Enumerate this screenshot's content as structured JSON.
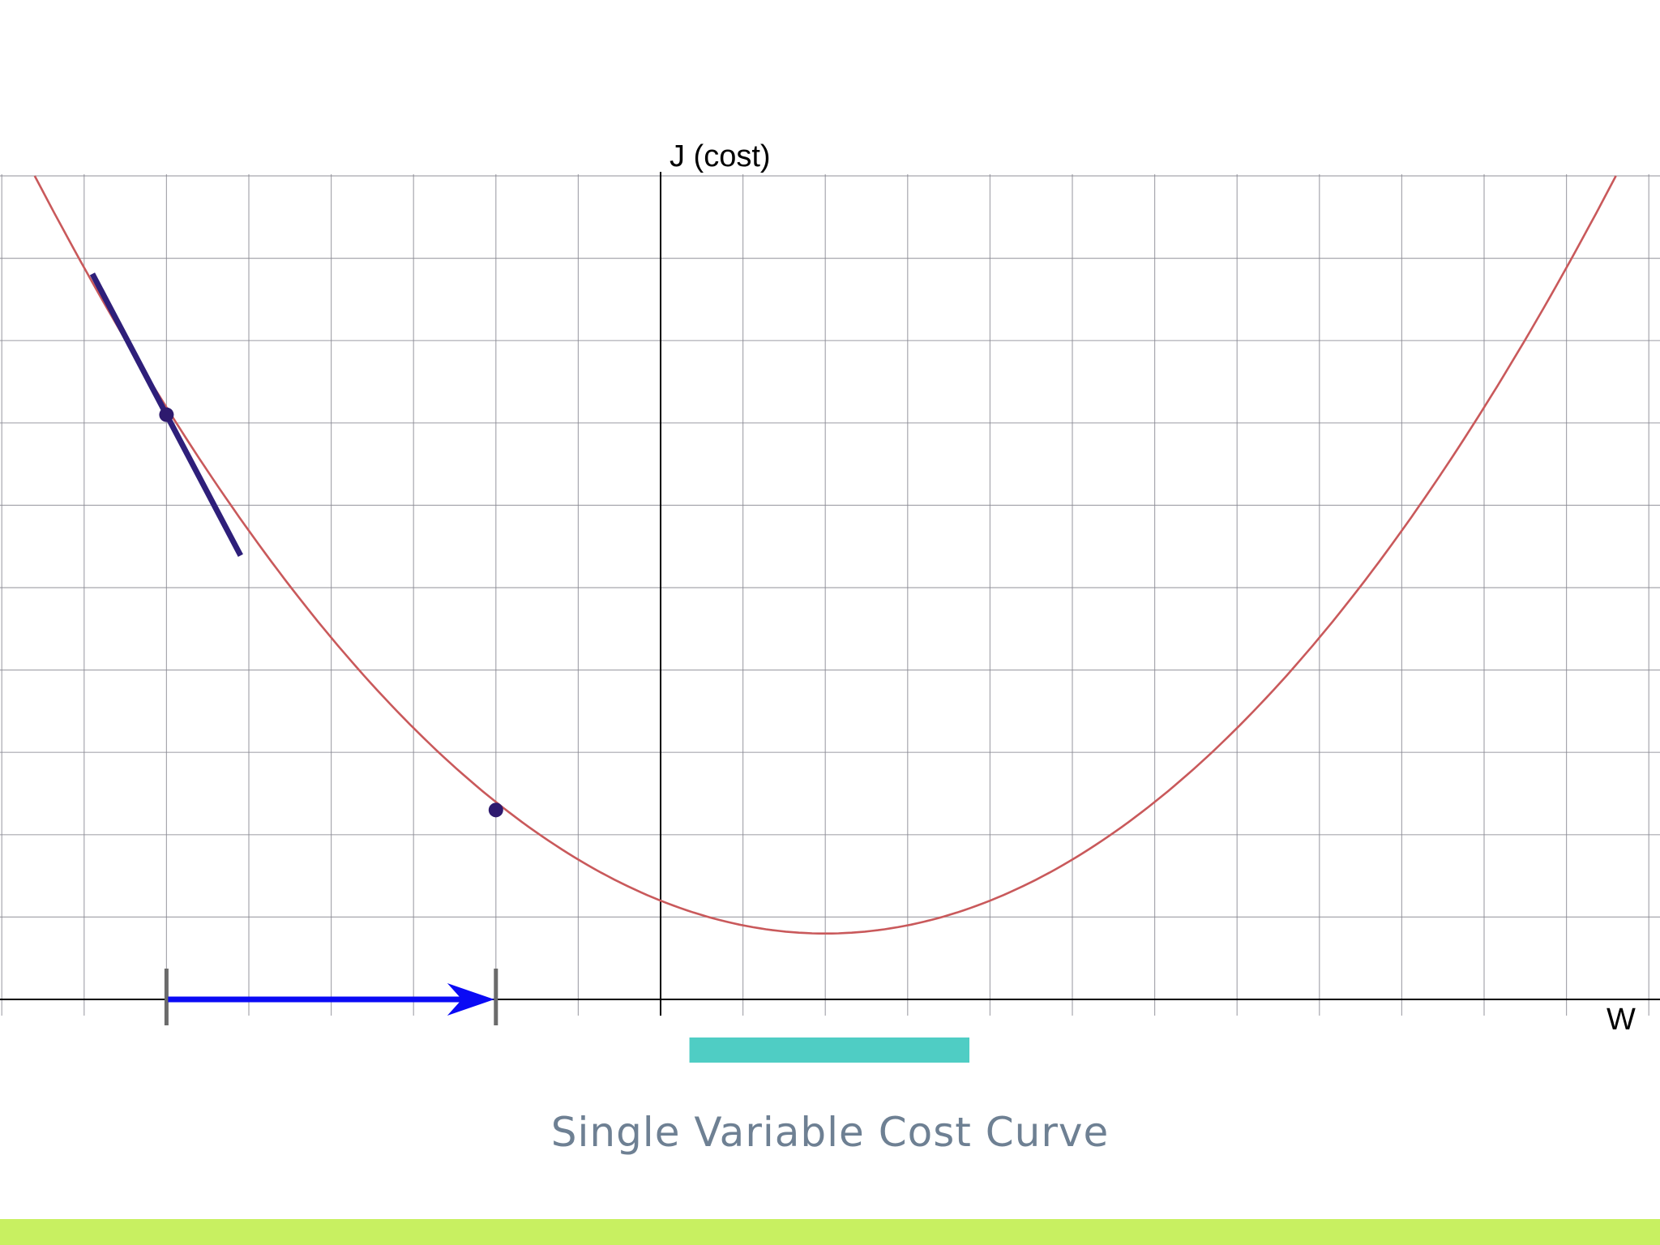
{
  "diagram": {
    "caption": "Single Variable Cost Curve",
    "y_axis_label": "J (cost)",
    "x_axis_label": "W"
  },
  "colors": {
    "background": "#ffffff",
    "grid": "#8a8a94",
    "axis": "#000000",
    "curve": "#c9595b",
    "tangent": "#2e1f7a",
    "point": "#2e1a6e",
    "step_arrow": "#0a0af5",
    "step_bracket": "#6b6b6b",
    "highlight_bar": "#4fcdc4",
    "caption": "#6e8093",
    "footer_bar": "#c8f061"
  },
  "chart_data": {
    "type": "line",
    "title": "Single Variable Cost Curve",
    "xlabel": "W",
    "ylabel": "J (cost)",
    "grid": true,
    "xlim": [
      -8,
      12
    ],
    "ylim": [
      0,
      10
    ],
    "series": [
      {
        "kind": "parabola",
        "vertex": [
          2,
          0.8
        ],
        "points": [
          [
            -7.6,
            10.0
          ],
          [
            -6,
            7.1
          ],
          [
            -4,
            4.8
          ],
          [
            -2,
            2.3
          ],
          [
            0,
            1.2
          ],
          [
            2,
            0.8
          ],
          [
            4,
            1.1
          ],
          [
            6,
            2.4
          ],
          [
            8,
            4.6
          ],
          [
            10,
            7.6
          ],
          [
            11.6,
            10.0
          ]
        ]
      }
    ],
    "annotations": {
      "tangent_point": [
        -6,
        7.1
      ],
      "tangent_slope": -1.9,
      "tangent_x_range": [
        -6.9,
        -5.1
      ],
      "next_point": [
        -2,
        2.3
      ],
      "step_arrow": {
        "from": -6,
        "to": -2,
        "y": 0
      },
      "highlight_bar_x_range": [
        0.35,
        3.75
      ]
    }
  }
}
